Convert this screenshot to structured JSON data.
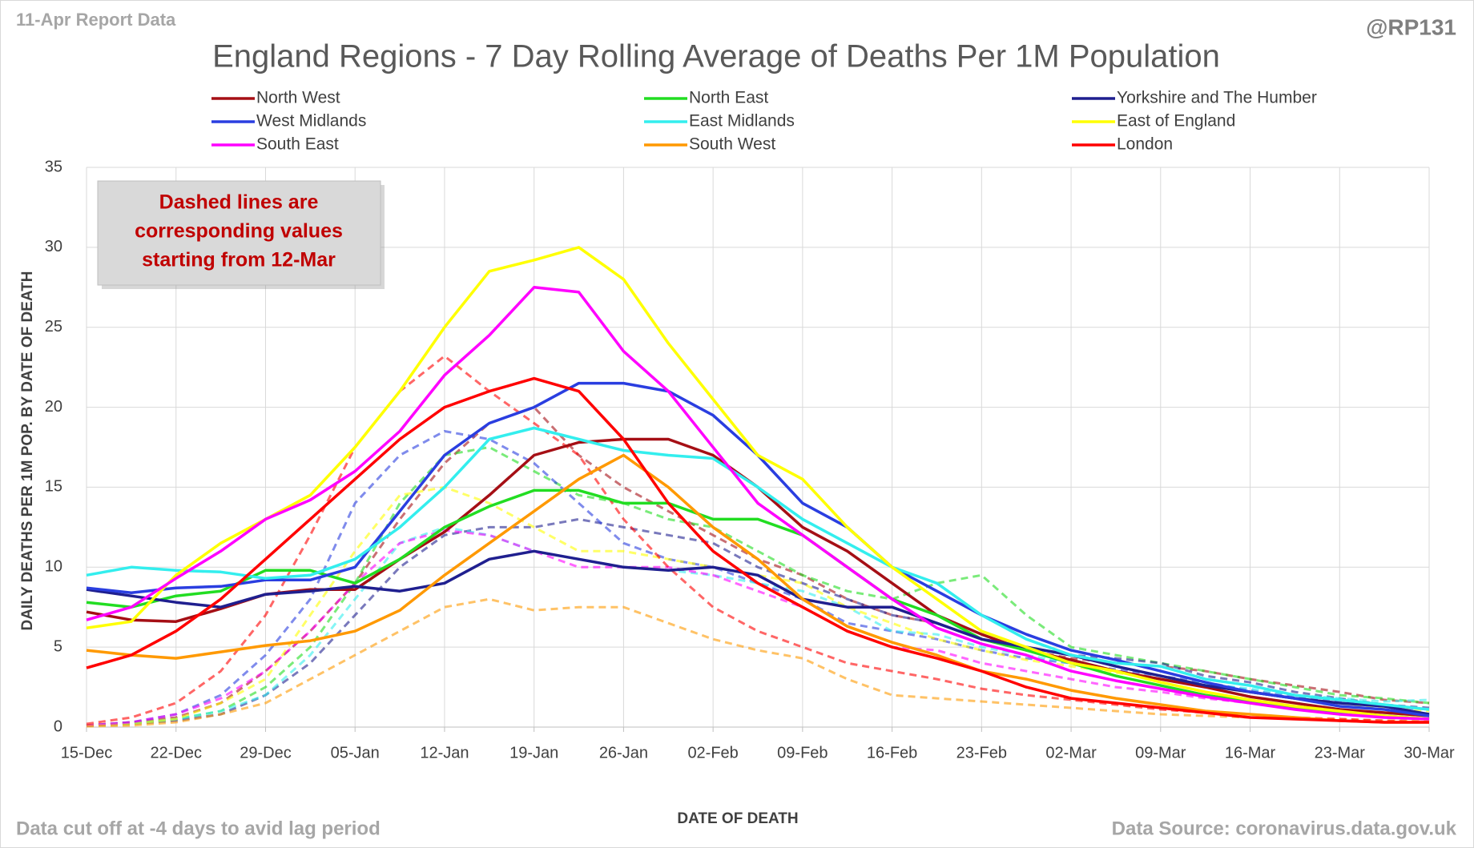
{
  "chart_data": {
    "type": "line",
    "report_label": "11-Apr Report Data",
    "handle": "@RP131",
    "title": "England Regions - 7 Day Rolling Average of Deaths Per 1M Population",
    "annotation": [
      "Dashed lines are",
      "corresponding values",
      "starting from 12-Mar"
    ],
    "y_label": "DAILY DEATHS PER 1M POP. BY DATE OF DEATH",
    "x_label": "DATE OF DEATH",
    "footer_left": "Data cut off at -4 days to avid lag period",
    "footer_right": "Data Source: coronavirus.data.gov.uk",
    "xlim": [
      0,
      105
    ],
    "xticks": [
      {
        "value": 0,
        "label": "15-Dec"
      },
      {
        "value": 7,
        "label": "22-Dec"
      },
      {
        "value": 14,
        "label": "29-Dec"
      },
      {
        "value": 21,
        "label": "05-Jan"
      },
      {
        "value": 28,
        "label": "12-Jan"
      },
      {
        "value": 35,
        "label": "19-Jan"
      },
      {
        "value": 42,
        "label": "26-Jan"
      },
      {
        "value": 49,
        "label": "02-Feb"
      },
      {
        "value": 56,
        "label": "09-Feb"
      },
      {
        "value": 63,
        "label": "16-Feb"
      },
      {
        "value": 70,
        "label": "23-Feb"
      },
      {
        "value": 77,
        "label": "02-Mar"
      },
      {
        "value": 84,
        "label": "09-Mar"
      },
      {
        "value": 91,
        "label": "16-Mar"
      },
      {
        "value": 98,
        "label": "23-Mar"
      },
      {
        "value": 105,
        "label": "30-Mar"
      }
    ],
    "ylim": [
      0,
      35
    ],
    "yticks": [
      0,
      5,
      10,
      15,
      20,
      25,
      30,
      35
    ],
    "grid": true,
    "x": [
      0,
      3.5,
      7,
      10.5,
      14,
      17.5,
      21,
      24.5,
      28,
      31.5,
      35,
      38.5,
      42,
      45.5,
      49,
      52.5,
      56,
      59.5,
      63,
      66.5,
      70,
      73.5,
      77,
      80.5,
      84,
      87.5,
      91,
      94.5,
      98,
      101.5,
      105
    ],
    "series": [
      {
        "name": "North West",
        "color": "#a50f15",
        "values": [
          7.2,
          6.7,
          6.6,
          7.4,
          8.3,
          8.6,
          8.6,
          10.5,
          12.2,
          14.5,
          17,
          17.8,
          18,
          18,
          17,
          15,
          12.5,
          11,
          9,
          7,
          5.8,
          4.8,
          4.2,
          3.5,
          3,
          2.5,
          1.9,
          1.5,
          1.1,
          0.9,
          0.7
        ]
      },
      {
        "name": "North East",
        "color": "#22dd22",
        "values": [
          7.8,
          7.5,
          8.2,
          8.5,
          9.8,
          9.8,
          9,
          10.5,
          12.5,
          13.8,
          14.8,
          14.8,
          14,
          14,
          13,
          13,
          12,
          10,
          8,
          7,
          5.5,
          4.8,
          4,
          3.2,
          2.6,
          2,
          1.6,
          1.2,
          0.9,
          0.7,
          0.5
        ]
      },
      {
        "name": "Yorkshire and The Humber",
        "color": "#1f1f8f",
        "values": [
          8.6,
          8.2,
          7.8,
          7.5,
          8.3,
          8.5,
          8.8,
          8.5,
          9,
          10.5,
          11,
          10.5,
          10,
          9.8,
          10,
          9.5,
          8,
          7.5,
          7.5,
          6.5,
          5.5,
          5,
          4.5,
          3.8,
          3.2,
          2.6,
          2.2,
          1.8,
          1.5,
          1.3,
          0.8
        ]
      },
      {
        "name": "West Midlands",
        "color": "#2a3ee0",
        "values": [
          8.7,
          8.4,
          8.7,
          8.8,
          9.2,
          9.2,
          10,
          13.5,
          17,
          19,
          20,
          21.5,
          21.5,
          21,
          19.5,
          17,
          14,
          12.5,
          10,
          8.5,
          7,
          5.8,
          4.8,
          4.2,
          3.5,
          2.8,
          2.2,
          1.8,
          1.3,
          1.1,
          0.7
        ]
      },
      {
        "name": "East Midlands",
        "color": "#33eeee",
        "values": [
          9.5,
          10,
          9.8,
          9.7,
          9.3,
          9.5,
          10.5,
          12.5,
          15,
          18,
          18.7,
          18,
          17.3,
          17,
          16.8,
          15,
          13,
          11.5,
          10,
          9,
          7,
          5.5,
          4.5,
          4,
          3.8,
          3,
          2.6,
          2,
          1.7,
          1.4,
          1.1
        ]
      },
      {
        "name": "East of England",
        "color": "#ffff00",
        "values": [
          6.2,
          6.6,
          9.5,
          11.5,
          13,
          14.5,
          17.5,
          21,
          25,
          28.5,
          29.2,
          30,
          28,
          24,
          20.5,
          17,
          15.5,
          12.5,
          10,
          8,
          6,
          5,
          4,
          3.5,
          2.8,
          2.2,
          1.7,
          1.3,
          1,
          0.7,
          0.5
        ]
      },
      {
        "name": "South East",
        "color": "#ff00ff",
        "values": [
          6.7,
          7.5,
          9.3,
          11,
          13,
          14.2,
          16,
          18.5,
          22,
          24.5,
          27.5,
          27.2,
          23.5,
          21,
          17.5,
          14,
          12,
          10,
          8,
          6.2,
          5.2,
          4.5,
          3.5,
          2.9,
          2.4,
          1.9,
          1.5,
          1.1,
          0.8,
          0.6,
          0.5
        ]
      },
      {
        "name": "South West",
        "color": "#ff9900",
        "values": [
          4.8,
          4.5,
          4.3,
          4.7,
          5.1,
          5.4,
          6,
          7.3,
          9.5,
          11.5,
          13.5,
          15.5,
          17,
          15,
          12.5,
          10.5,
          8,
          6.3,
          5.3,
          4.5,
          3.5,
          3,
          2.3,
          1.8,
          1.4,
          1,
          0.8,
          0.6,
          0.4,
          0.3,
          0.3
        ]
      },
      {
        "name": "London",
        "color": "#ff0000",
        "values": [
          3.7,
          4.5,
          6,
          8,
          10.5,
          13,
          15.5,
          18,
          20,
          21,
          21.8,
          21,
          18,
          14,
          11,
          9,
          7.5,
          6,
          5,
          4.3,
          3.5,
          2.5,
          1.8,
          1.5,
          1.2,
          0.9,
          0.6,
          0.5,
          0.4,
          0.3,
          0.3
        ]
      },
      {
        "color": "#a50f15",
        "dashed": true,
        "values": [
          0.1,
          0.3,
          0.6,
          1.5,
          3.5,
          6,
          9,
          13,
          16.5,
          19,
          20,
          17,
          15,
          13.5,
          12,
          10.5,
          9.5,
          8,
          7,
          6.5,
          5.5,
          4.8,
          4.3,
          4,
          3.8,
          3.5,
          3,
          2.6,
          2.2,
          1.7,
          1.5
        ]
      },
      {
        "color": "#22dd22",
        "dashed": true,
        "values": [
          0.1,
          0.2,
          0.5,
          1,
          2.5,
          5,
          9,
          14,
          17,
          17.5,
          16,
          14.5,
          14,
          13,
          12.5,
          11,
          9.5,
          8.5,
          8,
          9,
          9.5,
          7,
          5,
          4.5,
          4,
          3.5,
          3,
          2.5,
          2,
          1.8,
          1.5
        ]
      },
      {
        "color": "#1f1f8f",
        "dashed": true,
        "values": [
          0.1,
          0.2,
          0.4,
          0.8,
          2,
          4,
          7,
          10,
          12,
          12.5,
          12.5,
          13,
          12.5,
          12,
          11.5,
          10,
          9,
          8,
          7,
          6.5,
          5.5,
          5,
          4.5,
          4.3,
          4,
          3.2,
          2.8,
          2.2,
          1.8,
          1.4,
          1.2
        ]
      },
      {
        "color": "#2a3ee0",
        "dashed": true,
        "values": [
          0.1,
          0.3,
          0.8,
          2,
          4.5,
          8,
          14,
          17,
          18.5,
          18,
          16.5,
          14,
          11.5,
          10.5,
          10,
          9,
          8,
          6.5,
          6,
          5.5,
          4.8,
          4.3,
          4,
          3.6,
          3.2,
          2.8,
          2.3,
          1.9,
          1.6,
          1.3,
          1.1
        ]
      },
      {
        "color": "#33eeee",
        "dashed": true,
        "values": [
          0.1,
          0.2,
          0.5,
          1,
          2,
          4.5,
          8,
          11.5,
          12.5,
          12,
          11,
          10.5,
          10,
          9.8,
          9.5,
          9,
          8.5,
          7.5,
          6,
          5.8,
          5,
          4.5,
          4,
          3.5,
          3,
          2.7,
          2.4,
          2,
          1.8,
          1.6,
          1.7
        ]
      },
      {
        "color": "#ffff00",
        "dashed": true,
        "values": [
          0.1,
          0.2,
          0.5,
          1.5,
          3,
          7,
          11,
          14.5,
          15,
          14,
          12.5,
          11,
          11,
          10.5,
          10,
          9.5,
          9,
          7.5,
          6.5,
          5.5,
          4.8,
          4.2,
          3.8,
          3.4,
          3,
          2.6,
          2.2,
          1.8,
          1.5,
          1.2,
          1
        ]
      },
      {
        "color": "#ff00ff",
        "dashed": true,
        "values": [
          0.1,
          0.3,
          0.8,
          1.8,
          3.5,
          6,
          9,
          11.5,
          12.3,
          12,
          11,
          10,
          10,
          10,
          9.5,
          8.5,
          7.5,
          6,
          5,
          4.8,
          4,
          3.5,
          3,
          2.5,
          2.2,
          1.8,
          1.5,
          1.3,
          1.1,
          0.9,
          0.8
        ]
      },
      {
        "color": "#ff9900",
        "dashed": true,
        "values": [
          0.05,
          0.1,
          0.3,
          0.8,
          1.5,
          3,
          4.5,
          6,
          7.5,
          8,
          7.3,
          7.5,
          7.5,
          6.5,
          5.5,
          4.8,
          4.3,
          3,
          2,
          1.8,
          1.6,
          1.4,
          1.2,
          1,
          0.8,
          0.7,
          0.6,
          0.5,
          0.5,
          0.4,
          0.4
        ]
      },
      {
        "color": "#ff0000",
        "dashed": true,
        "values": [
          0.2,
          0.6,
          1.5,
          3.5,
          7,
          12,
          17.5,
          21,
          23.2,
          21,
          19,
          17,
          13,
          10,
          7.5,
          6,
          5,
          4,
          3.5,
          3,
          2.4,
          2,
          1.7,
          1.4,
          1.1,
          0.9,
          0.8,
          0.6,
          0.5,
          0.4,
          0.3
        ]
      }
    ]
  }
}
